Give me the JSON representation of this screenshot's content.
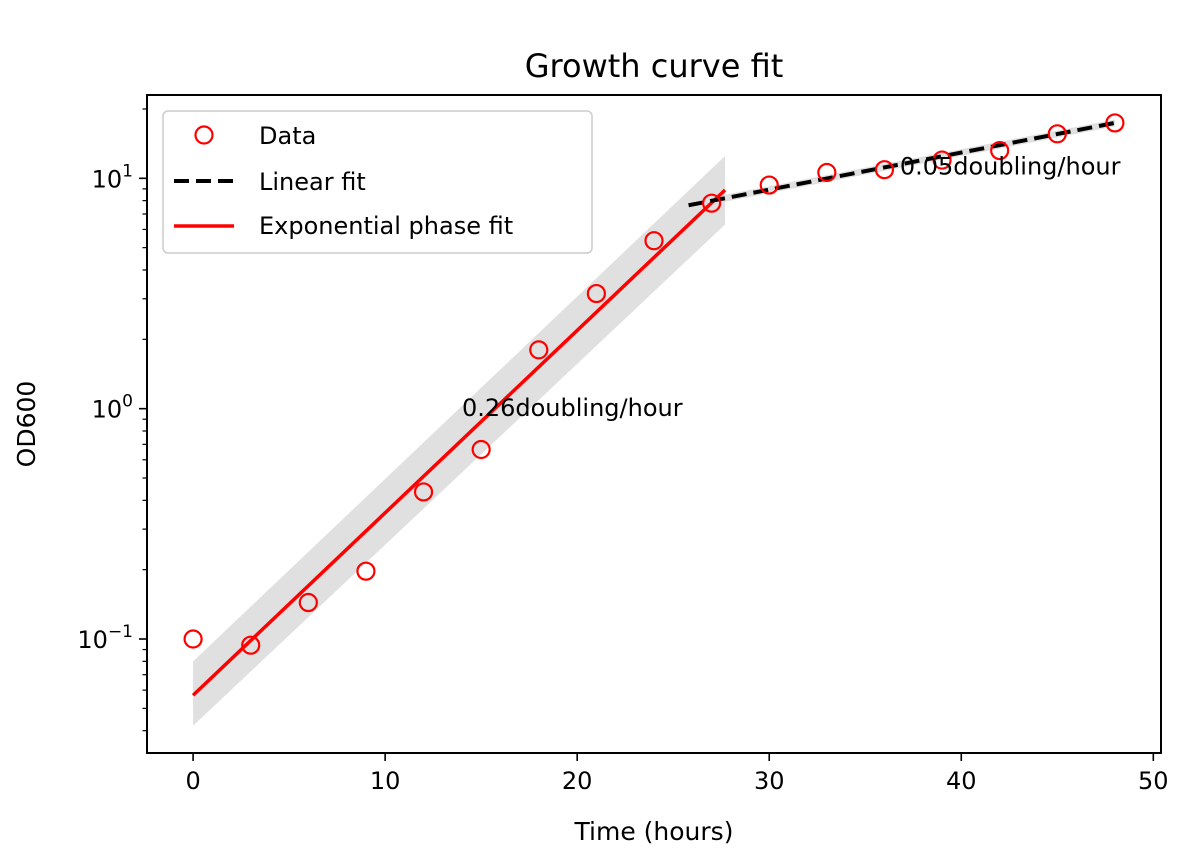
{
  "chart_data": {
    "type": "scatter",
    "title": "Growth curve fit",
    "xlabel": "Time (hours)",
    "ylabel": "OD600",
    "xlim": [
      -2.4,
      50.4
    ],
    "ylim": [
      0.032,
      23
    ],
    "yscale": "log",
    "grid": false,
    "legend_position": "upper left",
    "x_ticks": [
      0,
      10,
      20,
      30,
      40,
      50
    ],
    "x_tick_labels": [
      "0",
      "10",
      "20",
      "30",
      "40",
      "50"
    ],
    "y_ticks": [
      {
        "value": 0.1,
        "base": "10",
        "exp": "−1"
      },
      {
        "value": 1,
        "base": "10",
        "exp": "0"
      },
      {
        "value": 10,
        "base": "10",
        "exp": "1"
      }
    ],
    "data_points": {
      "name": "Data",
      "color": "#ff0000",
      "x": [
        0,
        3,
        6,
        9,
        12,
        15,
        18,
        21,
        24,
        27,
        30,
        33,
        36,
        39,
        42,
        45,
        48
      ],
      "y": [
        0.1,
        0.094,
        0.144,
        0.197,
        0.435,
        0.665,
        1.8,
        3.16,
        5.36,
        7.8,
        9.35,
        10.6,
        10.9,
        12.0,
        13.2,
        15.6,
        17.4
      ]
    },
    "linear_fit": {
      "name": "Linear fit",
      "color": "#000000",
      "style": "dashed",
      "x": [
        25.8,
        48
      ],
      "y": [
        7.64,
        17.4
      ],
      "band_color": "#e0e0e0"
    },
    "exponential_fit": {
      "name": "Exponential phase fit",
      "color": "#ff0000",
      "x": [
        0,
        27.7
      ],
      "y": [
        0.057,
        8.9
      ],
      "band_upper": [
        0.08,
        12.5
      ],
      "band_lower": [
        0.042,
        6.3
      ],
      "band_color": "#e0e0e0"
    },
    "annotations": [
      {
        "text": "0.26doubling/hour",
        "x": 14,
        "y": 0.93
      },
      {
        "text": "0.05doubling/hour",
        "x": 36.8,
        "y": 10.4
      }
    ]
  }
}
